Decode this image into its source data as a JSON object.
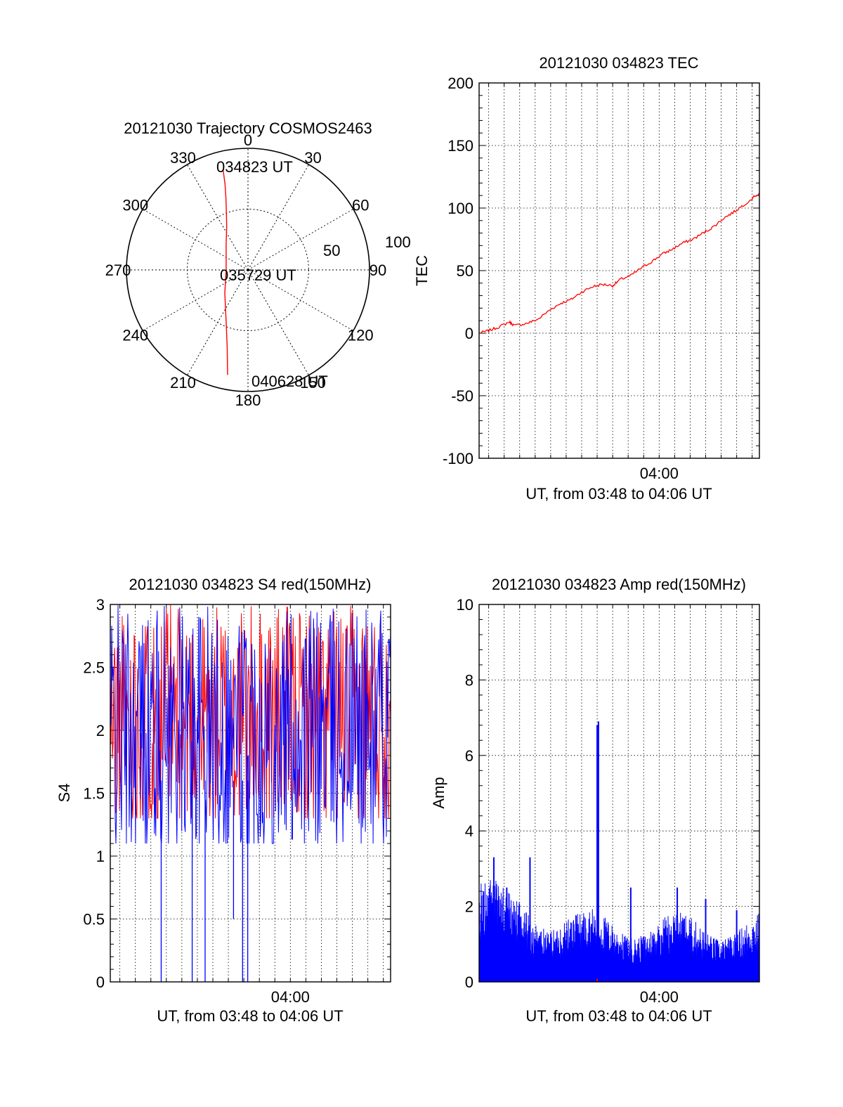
{
  "chart_data": [
    {
      "id": "trajectory",
      "type": "polar-trajectory",
      "title": "20121030 Trajectory COSMOS2463",
      "azimuth_ticks": [
        "0",
        "30",
        "60",
        "90",
        "120",
        "150",
        "180",
        "210",
        "240",
        "270",
        "300",
        "330"
      ],
      "radial_rings": [
        50,
        100
      ],
      "radial_labels": [
        "50",
        "100"
      ],
      "r_max": 100,
      "series": [
        {
          "color": "#ff0000",
          "points": [
            {
              "az": 346,
              "r": 84
            },
            {
              "az": 345,
              "r": 73
            },
            {
              "az": 343,
              "r": 62
            },
            {
              "az": 340,
              "r": 52
            },
            {
              "az": 334,
              "r": 40
            },
            {
              "az": 320,
              "r": 28
            },
            {
              "az": 270,
              "r": 18
            },
            {
              "az": 225,
              "r": 27
            },
            {
              "az": 203,
              "r": 46
            },
            {
              "az": 195,
              "r": 66
            },
            {
              "az": 191,
              "r": 88
            }
          ]
        }
      ],
      "annotations": [
        {
          "text": "034823 UT",
          "az": 346,
          "r": 84
        },
        {
          "text": "035729 UT",
          "az": 0,
          "r": 0
        },
        {
          "text": "040628 UT",
          "az": 191,
          "r": 88
        }
      ]
    },
    {
      "id": "tec",
      "type": "line",
      "title": "20121030 034823 TEC",
      "ylabel": "TEC",
      "xlabel": "UT, from 03:48 to 04:06 UT",
      "xlim": [
        "03:48:23",
        "04:06:28"
      ],
      "ylim": [
        -100,
        200
      ],
      "y_ticks": [
        "200",
        "150",
        "100",
        "50",
        "0",
        "-50",
        "-100"
      ],
      "x_ticks": [
        {
          "t": "04:00:00",
          "label": "04:00"
        }
      ],
      "grid": true,
      "series": [
        {
          "color": "#ff0000",
          "points": [
            [
              "03:48:23",
              0
            ],
            [
              "03:49:00",
              2
            ],
            [
              "03:49:40",
              5
            ],
            [
              "03:50:20",
              9
            ],
            [
              "03:50:40",
              6
            ],
            [
              "03:51:30",
              8
            ],
            [
              "03:52:10",
              11
            ],
            [
              "03:53:00",
              19
            ],
            [
              "03:53:40",
              24
            ],
            [
              "03:54:20",
              27
            ],
            [
              "03:55:00",
              33
            ],
            [
              "03:55:40",
              37
            ],
            [
              "03:56:20",
              39
            ],
            [
              "03:57:00",
              38
            ],
            [
              "03:57:30",
              43
            ],
            [
              "03:58:10",
              46
            ],
            [
              "03:58:50",
              52
            ],
            [
              "03:59:30",
              57
            ],
            [
              "04:00:10",
              63
            ],
            [
              "04:00:50",
              67
            ],
            [
              "04:01:30",
              72
            ],
            [
              "04:02:10",
              75
            ],
            [
              "04:02:50",
              80
            ],
            [
              "04:03:30",
              85
            ],
            [
              "04:04:10",
              92
            ],
            [
              "04:04:50",
              97
            ],
            [
              "04:05:30",
              103
            ],
            [
              "04:06:28",
              112
            ]
          ]
        }
      ]
    },
    {
      "id": "s4",
      "type": "line",
      "title": "20121030 034823 S4 red(150MHz)",
      "ylabel": "S4",
      "xlabel": "UT, from 03:48 to 04:06 UT",
      "xlim": [
        "03:48:23",
        "04:06:28"
      ],
      "ylim": [
        0,
        3
      ],
      "y_ticks": [
        "3",
        "2.5",
        "2",
        "1.5",
        "1",
        "0.5",
        "0"
      ],
      "x_ticks": [
        {
          "t": "04:00:00",
          "label": "04:00"
        }
      ],
      "grid": true,
      "series": [
        {
          "color": "#ff0000",
          "base": 2.1,
          "spread": 0.9,
          "min": 1.3,
          "max": 3
        },
        {
          "color": "#0000ff",
          "base": 2.0,
          "spread": 1.0,
          "min": 1.1,
          "max": 3
        }
      ],
      "dropouts": [
        {
          "t": "03:51:40",
          "min": 0
        },
        {
          "t": "03:53:40",
          "min": 0
        },
        {
          "t": "03:54:30",
          "min": 0
        },
        {
          "t": "03:56:20",
          "min": 0.5
        },
        {
          "t": "03:56:55",
          "min": 0
        },
        {
          "t": "03:57:15",
          "min": 0
        }
      ]
    },
    {
      "id": "amp",
      "type": "line",
      "title": "20121030 034823 Amp red(150MHz)",
      "ylabel": "Amp",
      "xlabel": "UT, from 03:48 to 04:06 UT",
      "xlim": [
        "03:48:23",
        "04:06:28"
      ],
      "ylim": [
        0,
        10
      ],
      "y_ticks": [
        "10",
        "8",
        "6",
        "4",
        "2",
        "0"
      ],
      "x_ticks": [
        {
          "t": "04:00:00",
          "label": "04:00"
        }
      ],
      "grid": true,
      "series": [
        {
          "color": "#0000ff",
          "baseline": 1.0,
          "spikes": [
            {
              "t": "03:48:40",
              "v": 2.4
            },
            {
              "t": "03:49:20",
              "v": 3.3
            },
            {
              "t": "03:50:10",
              "v": 2.5
            },
            {
              "t": "03:51:40",
              "v": 3.3
            },
            {
              "t": "03:56:00",
              "v": 6.8
            },
            {
              "t": "03:56:05",
              "v": 6.9
            },
            {
              "t": "03:58:10",
              "v": 2.5
            },
            {
              "t": "04:01:10",
              "v": 2.5
            },
            {
              "t": "04:03:00",
              "v": 2.2
            },
            {
              "t": "04:05:00",
              "v": 1.9
            }
          ]
        },
        {
          "color": "#ff0000",
          "baseline": 0.05,
          "spikes": []
        }
      ]
    }
  ]
}
